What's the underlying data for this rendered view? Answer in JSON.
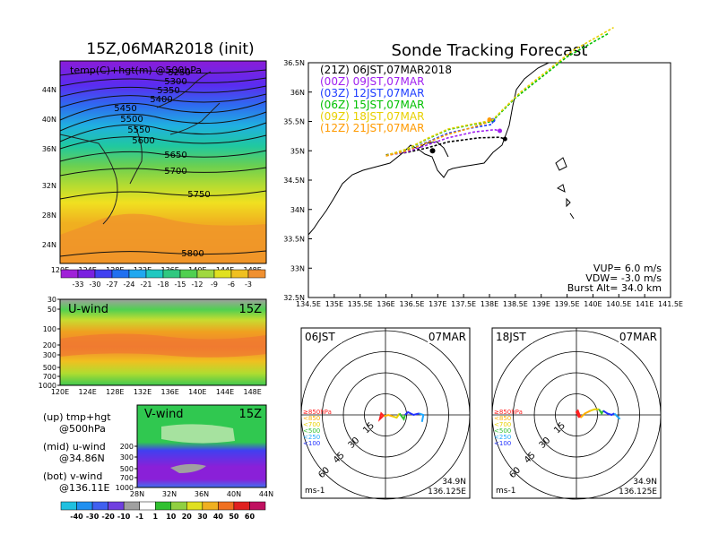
{
  "chart_data": [
    {
      "panel": "upper-air-map",
      "type": "heatmap",
      "title": "15Z,06MAR2018 (init)",
      "subtitle": "temp(C)+hgt(m) @500hPa",
      "x_ticks": [
        "120E",
        "124E",
        "128E",
        "132E",
        "136E",
        "140E",
        "144E",
        "148E"
      ],
      "y_ticks": [
        "44N",
        "40N",
        "36N",
        "32N",
        "28N",
        "24N"
      ],
      "xlim": [
        120,
        150
      ],
      "ylim": [
        22,
        47
      ],
      "color_ticks": [
        "-33",
        "-30",
        "-27",
        "-24",
        "-21",
        "-18",
        "-15",
        "-12",
        "-9",
        "-6",
        "-3"
      ],
      "contours": [
        {
          "label": "5250",
          "level": 5250
        },
        {
          "label": "5300",
          "level": 5300
        },
        {
          "label": "5350",
          "level": 5350
        },
        {
          "label": "5400",
          "level": 5400
        },
        {
          "label": "5450",
          "level": 5450
        },
        {
          "label": "5500",
          "level": 5500
        },
        {
          "label": "5550",
          "level": 5550
        },
        {
          "label": "5600",
          "level": 5600
        },
        {
          "label": "5650",
          "level": 5650
        },
        {
          "label": "5700",
          "level": 5700
        },
        {
          "label": "5750",
          "level": 5750
        },
        {
          "label": "5800",
          "level": 5800
        }
      ]
    },
    {
      "panel": "u-wind",
      "type": "heatmap",
      "title": "U-wind",
      "time_label": "15Z",
      "x_ticks": [
        "120E",
        "124E",
        "128E",
        "132E",
        "136E",
        "140E",
        "144E",
        "148E"
      ],
      "y_ticks": [
        "30",
        "50",
        "100",
        "200",
        "300",
        "500",
        "700",
        "1000"
      ]
    },
    {
      "panel": "v-wind",
      "type": "heatmap",
      "title": "V-wind",
      "time_label": "15Z",
      "x_ticks": [
        "28N",
        "32N",
        "36N",
        "40N",
        "44N"
      ],
      "y_ticks": [
        "200",
        "300",
        "500",
        "700",
        "1000"
      ],
      "color_ticks": [
        "-40",
        "-30",
        "-20",
        "-10",
        "-1",
        "1",
        "10",
        "20",
        "30",
        "40",
        "50",
        "60"
      ]
    },
    {
      "panel": "tracking-map",
      "type": "line",
      "title": "Sonde Tracking Forecast",
      "x_ticks": [
        "134.5E",
        "135E",
        "135.5E",
        "136E",
        "136.5E",
        "137E",
        "137.5E",
        "138E",
        "138.5E",
        "139E",
        "139.5E",
        "140E",
        "140.5E",
        "141E",
        "141.5E"
      ],
      "y_ticks": [
        "36.5N",
        "36N",
        "35.5N",
        "35N",
        "34.5N",
        "34N",
        "33.5N",
        "33N",
        "32.5N"
      ],
      "xlim": [
        134.5,
        141.5
      ],
      "ylim": [
        32.5,
        36.5
      ],
      "params": [
        "VUP= 6.0 m/s",
        "VDW= -3.0 m/s",
        "Burst Alt= 34.0 km"
      ],
      "series": [
        {
          "name": "(21Z) 06JST,07MAR2018",
          "color": "#000000",
          "points": [
            [
              136.0,
              34.93
            ],
            [
              136.4,
              34.97
            ],
            [
              136.8,
              35.05
            ],
            [
              137.2,
              35.15
            ],
            [
              137.8,
              35.22
            ],
            [
              138.2,
              35.23
            ],
            [
              138.3,
              35.2
            ]
          ]
        },
        {
          "name": "(00Z) 09JST,07MAR",
          "color": "#a020f0",
          "points": [
            [
              136.0,
              34.92
            ],
            [
              136.4,
              34.98
            ],
            [
              136.8,
              35.1
            ],
            [
              137.2,
              35.22
            ],
            [
              137.7,
              35.32
            ],
            [
              138.1,
              35.36
            ],
            [
              138.2,
              35.34
            ]
          ]
        },
        {
          "name": "(03Z) 12JST,07MAR",
          "color": "#1e3cff",
          "points": [
            [
              136.0,
              34.92
            ],
            [
              136.4,
              35.0
            ],
            [
              136.8,
              35.15
            ],
            [
              137.2,
              35.3
            ],
            [
              137.6,
              35.38
            ],
            [
              138.05,
              35.45
            ],
            [
              138.07,
              35.52
            ]
          ]
        },
        {
          "name": "(06Z) 15JST,07MAR",
          "color": "#00c000",
          "points": [
            [
              136.0,
              34.92
            ],
            [
              136.4,
              35.02
            ],
            [
              136.8,
              35.2
            ],
            [
              137.2,
              35.36
            ],
            [
              137.7,
              35.45
            ],
            [
              138.05,
              35.5
            ],
            [
              138.5,
              35.9
            ],
            [
              139.5,
              36.6
            ],
            [
              140.3,
              37.0
            ]
          ]
        },
        {
          "name": "(09Z) 18JST,07MAR",
          "color": "#e8d000",
          "points": [
            [
              136.0,
              34.92
            ],
            [
              136.4,
              35.03
            ],
            [
              136.8,
              35.21
            ],
            [
              137.2,
              35.37
            ],
            [
              137.7,
              35.46
            ],
            [
              138.05,
              35.52
            ],
            [
              138.6,
              36.0
            ],
            [
              139.6,
              36.7
            ],
            [
              140.4,
              37.1
            ]
          ]
        },
        {
          "name": "(12Z) 21JST,07MAR",
          "color": "#ff9a00",
          "points": [
            [
              136.0,
              34.91
            ],
            [
              136.4,
              35.0
            ],
            [
              136.8,
              35.14
            ],
            [
              137.2,
              35.28
            ],
            [
              137.6,
              35.38
            ],
            [
              137.95,
              35.48
            ],
            [
              138.0,
              35.53
            ]
          ]
        }
      ]
    },
    {
      "panel": "hodograph-06JST",
      "type": "line",
      "corner_left": "06JST",
      "corner_right": "07MAR",
      "ring_labels": [
        "15",
        "30",
        "45",
        "60"
      ],
      "unit": "ms-1",
      "location": [
        "34.9N",
        "136.125E"
      ],
      "legend": [
        "≥850hPa",
        "<850",
        "<700",
        "<500",
        "<250",
        "<100"
      ],
      "legend_colors": [
        "#ff2020",
        "#ffb000",
        "#e8d000",
        "#30c030",
        "#20a8ff",
        "#2030ff"
      ],
      "segments": [
        {
          "color": "#ff2020",
          "points": [
            [
              -2,
              -1
            ],
            [
              -4,
              -3
            ],
            [
              -3,
              1
            ],
            [
              -1,
              -1
            ]
          ]
        },
        {
          "color": "#ffb000",
          "points": [
            [
              -1,
              -1
            ],
            [
              2,
              0
            ],
            [
              5,
              -1
            ]
          ]
        },
        {
          "color": "#e8d000",
          "points": [
            [
              5,
              -1
            ],
            [
              8,
              -2
            ],
            [
              10,
              1
            ]
          ]
        },
        {
          "color": "#30c030",
          "points": [
            [
              10,
              1
            ],
            [
              13,
              -3
            ],
            [
              14,
              0
            ]
          ]
        },
        {
          "color": "#2030ff",
          "points": [
            [
              14,
              0
            ],
            [
              16,
              2
            ],
            [
              20,
              0
            ],
            [
              24,
              1
            ]
          ]
        },
        {
          "color": "#20a8ff",
          "points": [
            [
              24,
              1
            ],
            [
              27,
              0
            ],
            [
              26,
              -5
            ]
          ]
        }
      ]
    },
    {
      "panel": "hodograph-18JST",
      "type": "line",
      "corner_left": "18JST",
      "corner_right": "07MAR",
      "ring_labels": [
        "15",
        "30",
        "45",
        "60"
      ],
      "unit": "ms-1",
      "location": [
        "34.9N",
        "136.125E"
      ],
      "legend": [
        "≥850hPa",
        "<850",
        "<700",
        "<500",
        "<250",
        "<100"
      ],
      "legend_colors": [
        "#ff2020",
        "#ffb000",
        "#e8d000",
        "#30c030",
        "#20a8ff",
        "#2030ff"
      ],
      "segments": [
        {
          "color": "#ff2020",
          "points": [
            [
              2,
              -2
            ],
            [
              0,
              2
            ],
            [
              1,
              3
            ],
            [
              3,
              -2
            ]
          ]
        },
        {
          "color": "#ffb000",
          "points": [
            [
              3,
              -2
            ],
            [
              6,
              1
            ],
            [
              10,
              3
            ]
          ]
        },
        {
          "color": "#e8d000",
          "points": [
            [
              10,
              3
            ],
            [
              13,
              4
            ],
            [
              16,
              4
            ]
          ]
        },
        {
          "color": "#30c030",
          "points": [
            [
              16,
              4
            ],
            [
              18,
              1
            ],
            [
              19,
              3
            ]
          ]
        },
        {
          "color": "#2030ff",
          "points": [
            [
              19,
              3
            ],
            [
              22,
              1
            ],
            [
              25,
              0
            ],
            [
              27,
              1
            ]
          ]
        },
        {
          "color": "#20a8ff",
          "points": [
            [
              27,
              1
            ],
            [
              29,
              -1
            ],
            [
              31,
              -3
            ]
          ]
        }
      ]
    }
  ],
  "legend_text": {
    "up": "(up) tmp+hgt",
    "up2": "@500hPa",
    "mid": "(mid) u-wind",
    "mid2": "@34.86N",
    "bot": "(bot) v-wind",
    "bot2": "@136.11E"
  }
}
